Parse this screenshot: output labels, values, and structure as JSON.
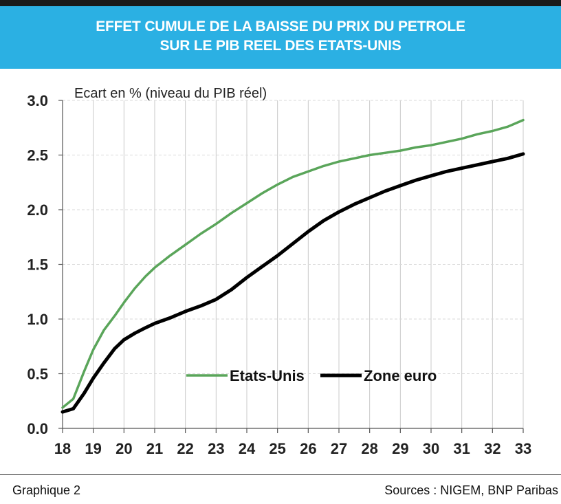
{
  "header": {
    "title_line1": "EFFET CUMULE DE LA BAISSE DU PRIX DU PETROLE",
    "title_line2": "SUR LE PIB REEL DES ETATS-UNIS"
  },
  "footer": {
    "figure_label": "Graphique 2",
    "sources": "Sources : NIGEM, BNP Paribas"
  },
  "colors": {
    "banner": "#2bb0e3",
    "etats_unis": "#5aa55a",
    "zone_euro": "#000000",
    "grid": "#c8c8c8"
  },
  "chart_data": {
    "type": "line",
    "title": "EFFET CUMULE DE LA BAISSE DU PRIX DU PETROLE SUR LE PIB REEL DES ETATS-UNIS",
    "ylabel": "Ecart en % (niveau du PIB réel)",
    "xlabel": "",
    "xlim": [
      18,
      33
    ],
    "ylim": [
      0,
      3
    ],
    "x_ticks": [
      "18",
      "19",
      "20",
      "21",
      "22",
      "23",
      "24",
      "25",
      "26",
      "27",
      "28",
      "29",
      "30",
      "31",
      "32",
      "33"
    ],
    "y_ticks": [
      "0.0",
      "0.5",
      "1.0",
      "1.5",
      "2.0",
      "2.5",
      "3.0"
    ],
    "grid": "vertical",
    "legend_position": "lower-center",
    "series": [
      {
        "name": "Etats-Unis",
        "color": "#5aa55a",
        "x": [
          18,
          18.35,
          18.7,
          19,
          19.35,
          19.7,
          20,
          20.35,
          20.7,
          21,
          21.5,
          22,
          22.5,
          23,
          23.5,
          24,
          24.5,
          25,
          25.5,
          26,
          26.5,
          27,
          27.5,
          28,
          28.5,
          29,
          29.5,
          30,
          30.5,
          31,
          31.5,
          32,
          32.5,
          33
        ],
        "values": [
          0.19,
          0.27,
          0.52,
          0.72,
          0.9,
          1.03,
          1.15,
          1.28,
          1.39,
          1.47,
          1.58,
          1.68,
          1.78,
          1.87,
          1.97,
          2.06,
          2.15,
          2.23,
          2.3,
          2.35,
          2.4,
          2.44,
          2.47,
          2.5,
          2.52,
          2.54,
          2.57,
          2.59,
          2.62,
          2.65,
          2.69,
          2.72,
          2.76,
          2.82
        ]
      },
      {
        "name": "Zone euro",
        "color": "#000000",
        "x": [
          18,
          18.35,
          18.7,
          19,
          19.35,
          19.7,
          20,
          20.35,
          20.7,
          21,
          21.5,
          22,
          22.5,
          23,
          23.5,
          24,
          24.5,
          25,
          25.5,
          26,
          26.5,
          27,
          27.5,
          28,
          28.5,
          29,
          29.5,
          30,
          30.5,
          31,
          31.5,
          32,
          32.5,
          33
        ],
        "values": [
          0.15,
          0.18,
          0.32,
          0.46,
          0.6,
          0.73,
          0.81,
          0.87,
          0.92,
          0.96,
          1.01,
          1.07,
          1.12,
          1.18,
          1.27,
          1.38,
          1.48,
          1.58,
          1.69,
          1.8,
          1.9,
          1.98,
          2.05,
          2.11,
          2.17,
          2.22,
          2.27,
          2.31,
          2.35,
          2.38,
          2.41,
          2.44,
          2.47,
          2.51
        ]
      }
    ]
  }
}
